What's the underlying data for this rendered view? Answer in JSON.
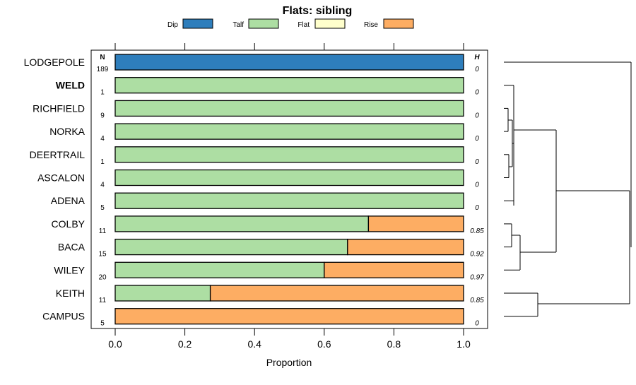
{
  "chart_data": {
    "type": "bar",
    "stacked": true,
    "orientation": "horizontal",
    "title": "Flats: sibling",
    "xlabel": "Proportion",
    "xlim": [
      0,
      1
    ],
    "xticks": [
      "0.0",
      "0.2",
      "0.4",
      "0.6",
      "0.8",
      "1.0"
    ],
    "legend": [
      {
        "name": "Dip",
        "color": "#2e7ebc"
      },
      {
        "name": "Talf",
        "color": "#addea3"
      },
      {
        "name": "Flat",
        "color": "#ffffcc"
      },
      {
        "name": "Rise",
        "color": "#fdad63"
      }
    ],
    "n_header": "N",
    "h_header": "H",
    "rows": [
      {
        "name": "LODGEPOLE",
        "bold": false,
        "n": "189",
        "h": "0",
        "values": [
          1,
          0,
          0,
          0
        ]
      },
      {
        "name": "WELD",
        "bold": true,
        "n": "1",
        "h": "0",
        "values": [
          0,
          1,
          0,
          0
        ]
      },
      {
        "name": "RICHFIELD",
        "bold": false,
        "n": "9",
        "h": "0",
        "values": [
          0,
          1,
          0,
          0
        ]
      },
      {
        "name": "NORKA",
        "bold": false,
        "n": "4",
        "h": "0",
        "values": [
          0,
          1,
          0,
          0
        ]
      },
      {
        "name": "DEERTRAIL",
        "bold": false,
        "n": "1",
        "h": "0",
        "values": [
          0,
          1,
          0,
          0
        ]
      },
      {
        "name": "ASCALON",
        "bold": false,
        "n": "4",
        "h": "0",
        "values": [
          0,
          1,
          0,
          0
        ]
      },
      {
        "name": "ADENA",
        "bold": false,
        "n": "5",
        "h": "0",
        "values": [
          0,
          1,
          0,
          0
        ]
      },
      {
        "name": "COLBY",
        "bold": false,
        "n": "11",
        "h": "0.85",
        "values": [
          0,
          0.727,
          0,
          0.273
        ]
      },
      {
        "name": "BACA",
        "bold": false,
        "n": "15",
        "h": "0.92",
        "values": [
          0,
          0.667,
          0,
          0.333
        ]
      },
      {
        "name": "WILEY",
        "bold": false,
        "n": "20",
        "h": "0.97",
        "values": [
          0,
          0.6,
          0,
          0.4
        ]
      },
      {
        "name": "KEITH",
        "bold": false,
        "n": "11",
        "h": "0.85",
        "values": [
          0,
          0.273,
          0,
          0.727
        ]
      },
      {
        "name": "CAMPUS",
        "bold": false,
        "n": "5",
        "h": "0",
        "values": [
          0,
          0,
          0,
          1
        ]
      }
    ]
  }
}
